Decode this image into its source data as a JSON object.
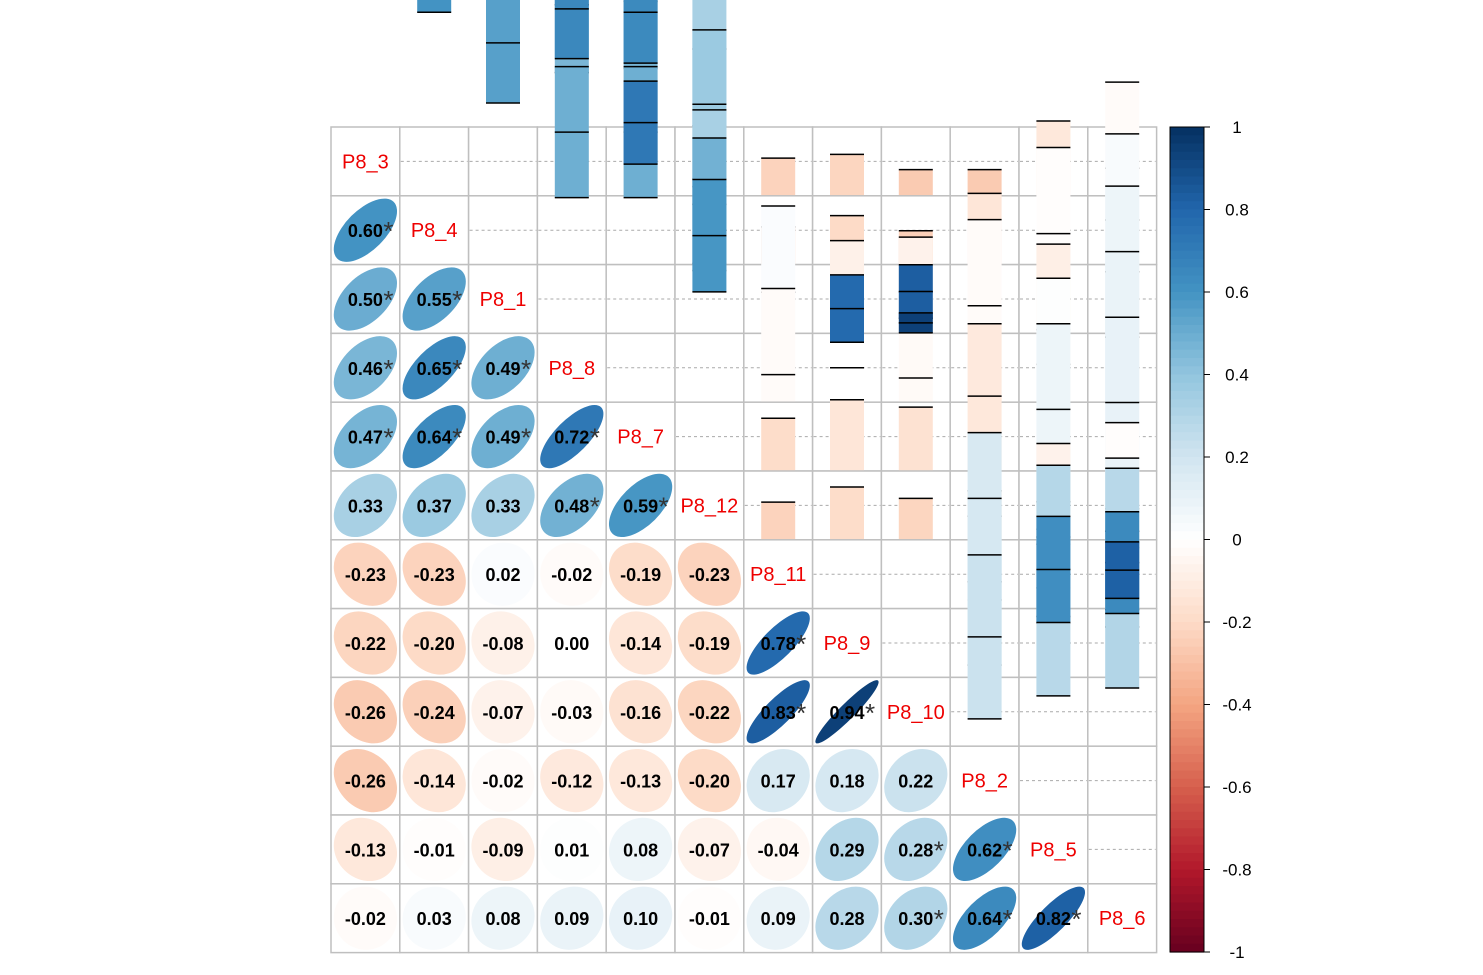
{
  "chart_data": {
    "type": "heatmap",
    "variables": [
      "P8_3",
      "P8_4",
      "P8_1",
      "P8_8",
      "P8_7",
      "P8_12",
      "P8_11",
      "P8_9",
      "P8_10",
      "P8_2",
      "P8_5",
      "P8_6"
    ],
    "matrix": [
      [
        1.0,
        0.6,
        0.5,
        0.46,
        0.47,
        0.33,
        -0.23,
        -0.22,
        -0.26,
        -0.26,
        -0.13,
        -0.02
      ],
      [
        0.6,
        1.0,
        0.55,
        0.65,
        0.64,
        0.37,
        -0.23,
        -0.2,
        -0.24,
        -0.14,
        -0.01,
        0.03
      ],
      [
        0.5,
        0.55,
        1.0,
        0.49,
        0.49,
        0.33,
        0.02,
        -0.08,
        -0.07,
        -0.02,
        -0.09,
        0.08
      ],
      [
        0.46,
        0.65,
        0.49,
        1.0,
        0.72,
        0.48,
        -0.02,
        0.0,
        -0.03,
        -0.12,
        0.01,
        0.09
      ],
      [
        0.47,
        0.64,
        0.49,
        0.72,
        1.0,
        0.59,
        -0.19,
        -0.14,
        -0.16,
        -0.13,
        0.08,
        0.1
      ],
      [
        0.33,
        0.37,
        0.33,
        0.48,
        0.59,
        1.0,
        -0.23,
        -0.19,
        -0.22,
        -0.2,
        -0.07,
        -0.01
      ],
      [
        -0.23,
        -0.23,
        0.02,
        -0.02,
        -0.19,
        -0.23,
        1.0,
        0.78,
        0.83,
        0.17,
        -0.04,
        0.09
      ],
      [
        -0.22,
        -0.2,
        -0.08,
        0.0,
        -0.14,
        -0.19,
        0.78,
        1.0,
        0.94,
        0.18,
        0.29,
        0.28
      ],
      [
        -0.26,
        -0.24,
        -0.07,
        -0.03,
        -0.16,
        -0.22,
        0.83,
        0.94,
        1.0,
        0.22,
        0.28,
        0.3
      ],
      [
        -0.26,
        -0.14,
        -0.02,
        -0.12,
        -0.13,
        -0.2,
        0.17,
        0.18,
        0.22,
        1.0,
        0.62,
        0.64
      ],
      [
        -0.13,
        -0.01,
        -0.09,
        0.01,
        0.08,
        -0.07,
        -0.04,
        0.29,
        0.28,
        0.62,
        1.0,
        0.82
      ],
      [
        -0.02,
        0.03,
        0.08,
        0.09,
        0.1,
        -0.01,
        0.09,
        0.28,
        0.3,
        0.64,
        0.82,
        1.0
      ]
    ],
    "labels_lower": [
      [
        "",
        "",
        "",
        "",
        "",
        "",
        "",
        "",
        "",
        "",
        "",
        ""
      ],
      [
        "0.60",
        "",
        "",
        "",
        "",
        "",
        "",
        "",
        "",
        "",
        "",
        ""
      ],
      [
        "0.50",
        "0.55",
        "",
        "",
        "",
        "",
        "",
        "",
        "",
        "",
        "",
        ""
      ],
      [
        "0.46",
        "0.65",
        "0.49",
        "",
        "",
        "",
        "",
        "",
        "",
        "",
        "",
        ""
      ],
      [
        "0.47",
        "0.64",
        "0.49",
        "0.72",
        "",
        "",
        "",
        "",
        "",
        "",
        "",
        ""
      ],
      [
        "0.33",
        "0.37",
        "0.33",
        "0.48",
        "0.59",
        "",
        "",
        "",
        "",
        "",
        "",
        ""
      ],
      [
        "-0.23",
        "-0.23",
        "0.02",
        "-0.02",
        "-0.19",
        "-0.23",
        "",
        "",
        "",
        "",
        "",
        ""
      ],
      [
        "-0.22",
        "-0.20",
        "-0.08",
        "0.00",
        "-0.14",
        "-0.19",
        "0.78",
        "",
        "",
        "",
        "",
        ""
      ],
      [
        "-0.26",
        "-0.24",
        "-0.07",
        "-0.03",
        "-0.16",
        "-0.22",
        "0.83",
        "0.94",
        "",
        "",
        "",
        ""
      ],
      [
        "-0.26",
        "-0.14",
        "-0.02",
        "-0.12",
        "-0.13",
        "-0.20",
        "0.17",
        "0.18",
        "0.22",
        "",
        "",
        ""
      ],
      [
        "-0.13",
        "-0.01",
        "-0.09",
        "0.01",
        "0.08",
        "-0.07",
        "-0.04",
        "0.29",
        "0.28",
        "0.62",
        "",
        ""
      ],
      [
        "-0.02",
        "0.03",
        "0.08",
        "0.09",
        "0.10",
        "-0.01",
        "0.09",
        "0.28",
        "0.30",
        "0.64",
        "0.82",
        ""
      ]
    ],
    "significant_lower": [
      [
        1,
        0,
        3
      ],
      [
        2,
        0
      ],
      [
        2,
        1
      ],
      [
        3,
        0
      ],
      [
        3,
        1
      ],
      [
        3,
        2
      ],
      [
        4,
        0
      ],
      [
        4,
        1
      ],
      [
        4,
        2
      ],
      [
        4,
        3
      ],
      [
        5,
        3
      ],
      [
        5,
        4
      ],
      [
        7,
        6
      ],
      [
        8,
        6
      ],
      [
        8,
        7
      ],
      [
        10,
        8
      ],
      [
        10,
        9
      ],
      [
        11,
        8
      ],
      [
        11,
        9
      ],
      [
        11,
        10
      ]
    ],
    "significance_marker": "*",
    "lower_method": "ellipse with coefficient",
    "upper_method": "confidence interval bars",
    "colorbar": {
      "range": [
        -1,
        1
      ],
      "ticks": [
        "1",
        "0.8",
        "0.6",
        "0.4",
        "0.2",
        "0",
        "-0.2",
        "-0.4",
        "-0.6",
        "-0.8",
        "-1"
      ],
      "colors": [
        "#67001F",
        "#B2182B",
        "#D6604D",
        "#F4A582",
        "#FDDBC7",
        "#FFFFFF",
        "#D1E5F0",
        "#92C5DE",
        "#4393C3",
        "#2166AC",
        "#053061"
      ]
    },
    "diagonal_label_color": "#EE0000",
    "grid": true
  }
}
